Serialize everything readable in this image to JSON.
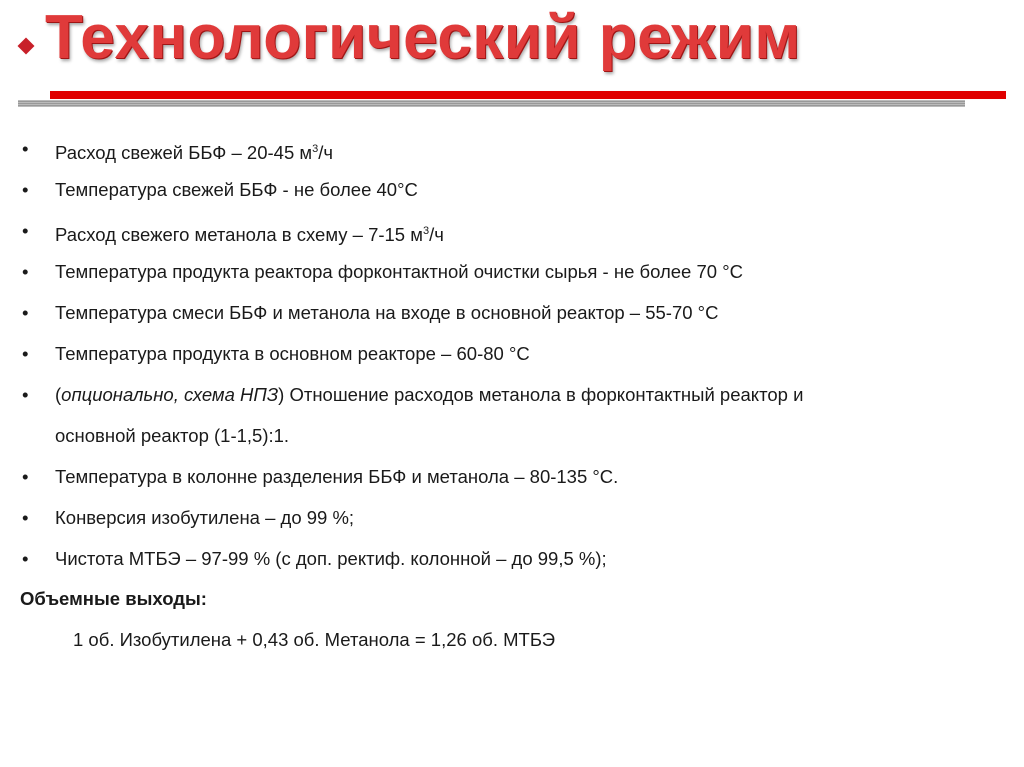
{
  "title": "Технологический режим",
  "colors": {
    "title": "#e03a3a",
    "accent_bar": "#e00000"
  },
  "items": [
    {
      "pre": "Расход свежей ББФ – 20-45 м",
      "sup": "3",
      "post": "/ч"
    },
    {
      "pre": "Температура свежей ББФ - не более 40°С"
    },
    {
      "pre": "Расход свежего метанола в схему – 7-15 м",
      "sup": "3",
      "post": "/ч"
    },
    {
      "pre": "Температура продукта реактора форконтактной очистки сырья - не более 70 °С"
    },
    {
      "pre": "Температура смеси ББФ и метанола на входе в основной реактор – 55-70 °С"
    },
    {
      "pre": "Температура продукта в основном реакторе – 60-80 °С"
    },
    {
      "italic": "опционально, схема НПЗ",
      "pre": "(",
      "post": ") Отношение расходов метанола в форконтактный реактор и",
      "cont": "основной реактор (1-1,5):1."
    },
    {
      "pre": "Температура в колонне разделения ББФ и метанола – 80-135 °С."
    },
    {
      "pre": "Конверсия изобутилена – до 99 %;"
    },
    {
      "pre": "Чистота МТБЭ – 97-99 % (с доп. ректиф. колонной – до 99,5 %);"
    }
  ],
  "bullet": "•",
  "heading": "Объемные выходы:",
  "formula": "1 об. Изобутилена + 0,43 об. Метанола = 1,26 об. МТБЭ"
}
